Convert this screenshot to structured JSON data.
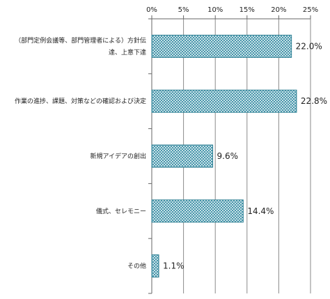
{
  "chart_data": {
    "type": "bar",
    "orientation": "horizontal",
    "title": "",
    "xlabel": "",
    "ylabel": "",
    "xlim": [
      0,
      25
    ],
    "x_ticks": [
      "0%",
      "5%",
      "10%",
      "15%",
      "20%",
      "25%"
    ],
    "x_tick_values": [
      0,
      5,
      10,
      15,
      20,
      25
    ],
    "x_axis_position": "top",
    "grid": true,
    "legend": "none",
    "categories": [
      [
        "（部門定例会議等、部門管理者による）方針伝",
        "達、上意下達"
      ],
      [
        "作業の進捗、課題、対策などの確認および決定"
      ],
      [
        "新規アイデアの創出"
      ],
      [
        "儀式、セレモニー"
      ],
      [
        "その他"
      ]
    ],
    "values": [
      22.0,
      22.8,
      9.6,
      14.4,
      1.1
    ],
    "value_labels": [
      "22.0%",
      "22.8%",
      "9.6%",
      "14.4%",
      "1.1%"
    ],
    "bar_fill": "#ffffff",
    "bar_pattern_color": "#3a8fa6",
    "bar_stroke": "#2d7f93",
    "grid_color": "#8a8a8a"
  }
}
